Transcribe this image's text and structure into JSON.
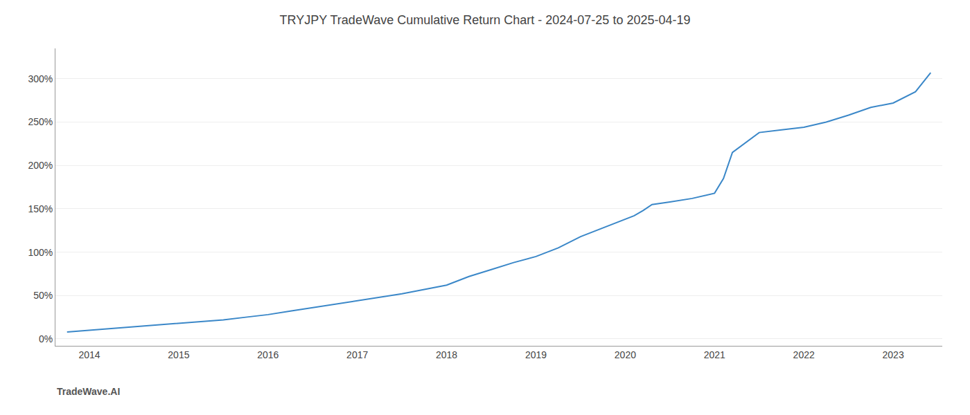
{
  "chart_data": {
    "type": "line",
    "title": "TRYJPY TradeWave Cumulative Return Chart - 2024-07-25 to 2025-04-19",
    "annotations": [
      "TradeWave.AI"
    ],
    "x": [
      2013.75,
      2014.0,
      2014.1,
      2014.25,
      2014.4,
      2014.5,
      2014.75,
      2015.0,
      2015.25,
      2015.5,
      2015.75,
      2016.0,
      2016.25,
      2016.5,
      2016.75,
      2017.0,
      2017.25,
      2017.5,
      2017.75,
      2018.0,
      2018.1,
      2018.25,
      2018.5,
      2018.75,
      2019.0,
      2019.25,
      2019.5,
      2019.75,
      2020.0,
      2020.1,
      2020.2,
      2020.3,
      2020.5,
      2020.75,
      2021.0,
      2021.1,
      2021.2,
      2021.5,
      2021.75,
      2022.0,
      2022.25,
      2022.5,
      2022.75,
      2023.0,
      2023.25,
      2023.42
    ],
    "values": [
      8,
      10,
      11,
      12,
      13,
      14,
      16,
      18,
      20,
      22,
      25,
      28,
      32,
      36,
      40,
      44,
      48,
      52,
      57,
      62,
      66,
      72,
      80,
      88,
      95,
      105,
      118,
      128,
      138,
      142,
      148,
      155,
      158,
      162,
      168,
      185,
      215,
      238,
      241,
      244,
      250,
      258,
      267,
      272,
      285,
      307
    ],
    "color": "#3a87c8",
    "xlim": [
      2013.62,
      2023.55
    ],
    "xticks": [
      2014,
      2015,
      2016,
      2017,
      2018,
      2019,
      2020,
      2021,
      2022,
      2023
    ],
    "ylim": [
      -8,
      335
    ],
    "yticks": [
      {
        "value": 0,
        "label": "0%"
      },
      {
        "value": 50,
        "label": "50%"
      },
      {
        "value": 100,
        "label": "100%"
      },
      {
        "value": 150,
        "label": "150%"
      },
      {
        "value": 200,
        "label": "200%"
      },
      {
        "value": 250,
        "label": "250%"
      },
      {
        "value": 300,
        "label": "300%"
      }
    ],
    "grid": true
  }
}
